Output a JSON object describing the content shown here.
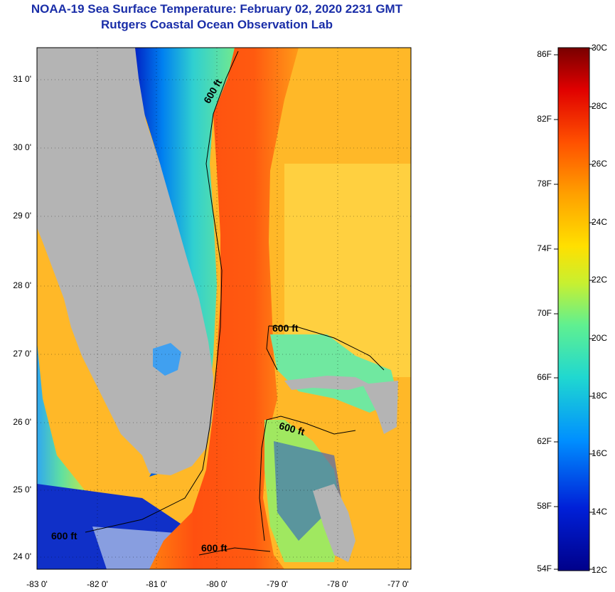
{
  "title_line1": "NOAA-19 Sea Surface Temperature:  February 02, 2020 2231 GMT",
  "title_line2": "Rutgers Coastal Ocean Observation Lab",
  "map": {
    "lat_labels": [
      "31 0'",
      "30 0'",
      "29 0'",
      "28 0'",
      "27 0'",
      "26 0'",
      "25 0'",
      "24 0'"
    ],
    "lon_labels": [
      "-83 0'",
      "-82 0'",
      "-81 0'",
      "-80 0'",
      "-79 0'",
      "-78 0'",
      "-77 0'"
    ],
    "contour_labels": [
      "600 ft",
      "600 ft",
      "600 ft",
      "600 ft",
      "600 ft"
    ],
    "colors": {
      "land": "#b4b4b4",
      "gulf_stream": "#ff5a10",
      "warm": "#ffb020",
      "cool": "#40e0c0",
      "cold": "#0030d0"
    }
  },
  "colorbar": {
    "fahrenheit_labels": [
      "86F",
      "82F",
      "78F",
      "74F",
      "70F",
      "66F",
      "62F",
      "58F",
      "54F"
    ],
    "celsius_labels": [
      "30C",
      "28C",
      "26C",
      "24C",
      "22C",
      "20C",
      "18C",
      "16C",
      "14C",
      "12C"
    ]
  }
}
